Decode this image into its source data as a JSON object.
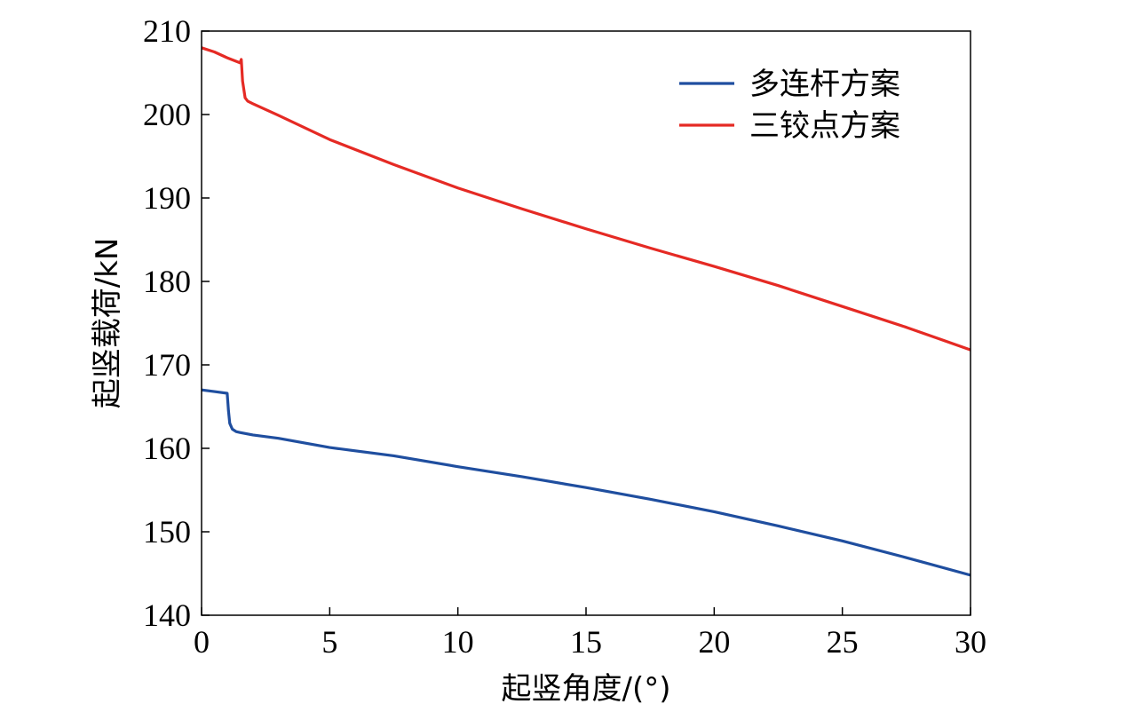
{
  "chart_data": {
    "type": "line",
    "xlabel": "起竖角度/(°)",
    "ylabel": "起竖载荷/kN",
    "xlim": [
      0,
      30
    ],
    "ylim": [
      140,
      210
    ],
    "xticks": [
      0,
      5,
      10,
      15,
      20,
      25,
      30
    ],
    "yticks": [
      140,
      150,
      160,
      170,
      180,
      190,
      200,
      210
    ],
    "grid": false,
    "legend_position": "top-right",
    "series": [
      {
        "name": "多连杆方案",
        "color": "#1f4e9f",
        "x": [
          0,
          0.5,
          1.0,
          1.05,
          1.1,
          1.2,
          1.35,
          1.5,
          2,
          3,
          5,
          7.5,
          10,
          12.5,
          15,
          17.5,
          20,
          22.5,
          25,
          27.5,
          30
        ],
        "y": [
          167.0,
          166.8,
          166.6,
          164.5,
          163.0,
          162.3,
          162.0,
          161.9,
          161.6,
          161.2,
          160.1,
          159.1,
          157.8,
          156.6,
          155.3,
          153.9,
          152.4,
          150.7,
          148.9,
          146.9,
          144.8
        ]
      },
      {
        "name": "三铰点方案",
        "color": "#e52a24",
        "x": [
          0,
          0.5,
          1.0,
          1.5,
          1.55,
          1.6,
          1.7,
          1.8,
          2,
          3,
          5,
          7.5,
          10,
          12.5,
          15,
          17.5,
          20,
          22.5,
          25,
          27.5,
          30
        ],
        "y": [
          208.0,
          207.5,
          206.8,
          206.2,
          206.6,
          204.0,
          202.0,
          201.6,
          201.3,
          199.9,
          197.0,
          194.0,
          191.2,
          188.7,
          186.3,
          184.0,
          181.8,
          179.5,
          177.0,
          174.5,
          171.8
        ]
      }
    ]
  }
}
